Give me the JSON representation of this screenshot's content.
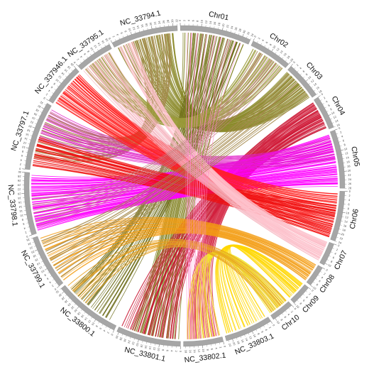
{
  "chromosomes": [
    {
      "name": "Chr01",
      "size": 34,
      "color": "#a6a6a6"
    },
    {
      "name": "Chr02",
      "size": 20,
      "color": "#a6a6a6"
    },
    {
      "name": "Chr03",
      "size": 18,
      "color": "#a6a6a6"
    },
    {
      "name": "Chr04",
      "size": 16,
      "color": "#a6a6a6"
    },
    {
      "name": "Chr05",
      "size": 28,
      "color": "#a6a6a6"
    },
    {
      "name": "Chr06",
      "size": 24,
      "color": "#a6a6a6"
    },
    {
      "name": "Chr07",
      "size": 11,
      "color": "#a6a6a6"
    },
    {
      "name": "Chr08",
      "size": 10,
      "color": "#a6a6a6"
    },
    {
      "name": "Chr09",
      "size": 10,
      "color": "#a6a6a6"
    },
    {
      "name": "Chr10",
      "size": 11,
      "color": "#a6a6a6"
    },
    {
      "name": "NC_33803.1",
      "size": 23,
      "color": "#a6a6a6"
    },
    {
      "name": "NC_33802.1",
      "size": 19,
      "color": "#a6a6a6"
    },
    {
      "name": "NC_33801.1",
      "size": 31,
      "color": "#a6a6a6"
    },
    {
      "name": "NC_33800.1",
      "size": 32,
      "color": "#a6a6a6"
    },
    {
      "name": "NC_33799.1",
      "size": 26,
      "color": "#a6a6a6"
    },
    {
      "name": "NC_33798.1",
      "size": 30,
      "color": "#a6a6a6"
    },
    {
      "name": "NC_33797.1",
      "size": 33,
      "color": "#a6a6a6"
    },
    {
      "name": "NC_337946.1",
      "size": 20,
      "color": "#a6a6a6"
    },
    {
      "name": "NC_33795.1",
      "size": 18,
      "color": "#a6a6a6"
    },
    {
      "name": "NC_33794.1",
      "size": 32,
      "color": "#a6a6a6"
    }
  ],
  "links": [
    {
      "src": "NC_33794.1",
      "s0": 0.05,
      "s1": 0.95,
      "dst": "Chr03",
      "d0": 0.05,
      "d1": 0.95,
      "color": "#8b8a2a",
      "n": 46
    },
    {
      "src": "NC_33794.1",
      "s0": 0.3,
      "s1": 0.9,
      "dst": "NC_33797.1",
      "d0": 0.2,
      "d1": 0.9,
      "color": "#a48a4c",
      "n": 30
    },
    {
      "src": "Chr01",
      "s0": 0.05,
      "s1": 0.95,
      "dst": "NC_33801.1",
      "d0": 0.05,
      "d1": 0.8,
      "color": "#808020",
      "n": 28
    },
    {
      "src": "Chr01",
      "s0": 0.2,
      "s1": 0.9,
      "dst": "NC_33800.1",
      "d0": 0.15,
      "d1": 0.9,
      "color": "#6b6b17",
      "n": 26
    },
    {
      "src": "Chr02",
      "s0": 0.1,
      "s1": 0.95,
      "dst": "NC_33795.1",
      "d0": 0.1,
      "d1": 0.9,
      "color": "#9a9a3a",
      "n": 24
    },
    {
      "src": "Chr04",
      "s0": 0.05,
      "s1": 0.95,
      "dst": "NC_33801.1",
      "d0": 0.1,
      "d1": 0.95,
      "color": "#c8102e",
      "n": 30
    },
    {
      "src": "Chr04",
      "s0": 0.1,
      "s1": 0.8,
      "dst": "NC_33802.1",
      "d0": 0.1,
      "d1": 0.9,
      "color": "#d21f3c",
      "n": 20
    },
    {
      "src": "Chr05",
      "s0": 0.05,
      "s1": 0.95,
      "dst": "NC_33798.1",
      "d0": 0.05,
      "d1": 0.95,
      "color": "#ff00ff",
      "n": 60
    },
    {
      "src": "Chr05",
      "s0": 0.1,
      "s1": 0.5,
      "dst": "NC_33797.1",
      "d0": 0.5,
      "d1": 0.95,
      "color": "#e020c8",
      "n": 18
    },
    {
      "src": "Chr06",
      "s0": 0.05,
      "s1": 0.95,
      "dst": "NC_337946.1",
      "d0": 0.05,
      "d1": 0.95,
      "color": "#ff2020",
      "n": 40
    },
    {
      "src": "Chr06",
      "s0": 0.3,
      "s1": 0.95,
      "dst": "NC_33797.1",
      "d0": 0.05,
      "d1": 0.5,
      "color": "#ee1111",
      "n": 26
    },
    {
      "src": "Chr07",
      "s0": 0.05,
      "s1": 0.95,
      "dst": "NC_33795.1",
      "d0": 0.05,
      "d1": 0.9,
      "color": "#f6b6c1",
      "n": 22
    },
    {
      "src": "Chr07",
      "s0": 0.05,
      "s1": 0.9,
      "dst": "NC_33794.1",
      "d0": 0.05,
      "d1": 0.3,
      "color": "#ffc4cf",
      "n": 16
    },
    {
      "src": "Chr08",
      "s0": 0.05,
      "s1": 0.95,
      "dst": "NC_33799.1",
      "d0": 0.05,
      "d1": 0.95,
      "color": "#f39c12",
      "n": 22
    },
    {
      "src": "Chr09",
      "s0": 0.05,
      "s1": 0.95,
      "dst": "NC_33803.1",
      "d0": 0.05,
      "d1": 0.95,
      "color": "#ffd700",
      "n": 20
    },
    {
      "src": "Chr10",
      "s0": 0.05,
      "s1": 0.95,
      "dst": "NC_33802.1",
      "d0": 0.05,
      "d1": 0.9,
      "color": "#f2ea28",
      "n": 18
    },
    {
      "src": "Chr10",
      "s0": 0.05,
      "s1": 0.9,
      "dst": "NC_33800.1",
      "d0": 0.6,
      "d1": 0.95,
      "color": "#e8a020",
      "n": 12
    },
    {
      "src": "Chr03",
      "s0": 0.1,
      "s1": 0.9,
      "dst": "NC_33799.1",
      "d0": 0.1,
      "d1": 0.9,
      "color": "#a48a4c",
      "n": 12
    },
    {
      "src": "Chr02",
      "s0": 0.2,
      "s1": 0.9,
      "dst": "NC_33798.1",
      "d0": 0.1,
      "d1": 0.6,
      "color": "#c08080",
      "n": 10
    },
    {
      "src": "Chr01",
      "s0": 0.1,
      "s1": 0.9,
      "dst": "NC_33802.1",
      "d0": 0.1,
      "d1": 0.9,
      "color": "#ff88cc",
      "n": 12
    }
  ]
}
